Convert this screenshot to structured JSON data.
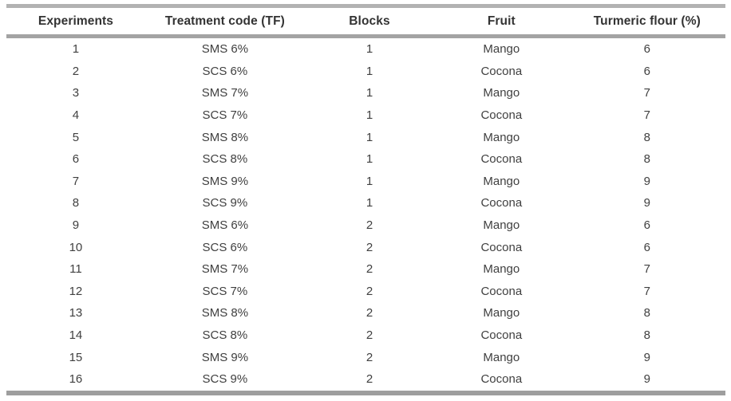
{
  "table": {
    "columns": [
      "Experiments",
      "Treatment code (TF)",
      "Blocks",
      "Fruit",
      "Turmeric flour (%)"
    ],
    "rows": [
      [
        "1",
        "SMS 6%",
        "1",
        "Mango",
        "6"
      ],
      [
        "2",
        "SCS 6%",
        "1",
        "Cocona",
        "6"
      ],
      [
        "3",
        "SMS 7%",
        "1",
        "Mango",
        "7"
      ],
      [
        "4",
        "SCS 7%",
        "1",
        "Cocona",
        "7"
      ],
      [
        "5",
        "SMS 8%",
        "1",
        "Mango",
        "8"
      ],
      [
        "6",
        "SCS 8%",
        "1",
        "Cocona",
        "8"
      ],
      [
        "7",
        "SMS 9%",
        "1",
        "Mango",
        "9"
      ],
      [
        "8",
        "SCS 9%",
        "1",
        "Cocona",
        "9"
      ],
      [
        "9",
        "SMS 6%",
        "2",
        "Mango",
        "6"
      ],
      [
        "10",
        "SCS 6%",
        "2",
        "Cocona",
        "6"
      ],
      [
        "11",
        "SMS 7%",
        "2",
        "Mango",
        "7"
      ],
      [
        "12",
        "SCS 7%",
        "2",
        "Cocona",
        "7"
      ],
      [
        "13",
        "SMS 8%",
        "2",
        "Mango",
        "8"
      ],
      [
        "14",
        "SCS 8%",
        "2",
        "Cocona",
        "8"
      ],
      [
        "15",
        "SMS 9%",
        "2",
        "Mango",
        "9"
      ],
      [
        "16",
        "SCS 9%",
        "2",
        "Cocona",
        "9"
      ]
    ],
    "colors": {
      "rule_top": "#b2b2b2",
      "rule_header": "#a3a3a3",
      "rule_bottom": "#9e9e9e",
      "text": "#404040",
      "header_text": "#333333"
    }
  }
}
